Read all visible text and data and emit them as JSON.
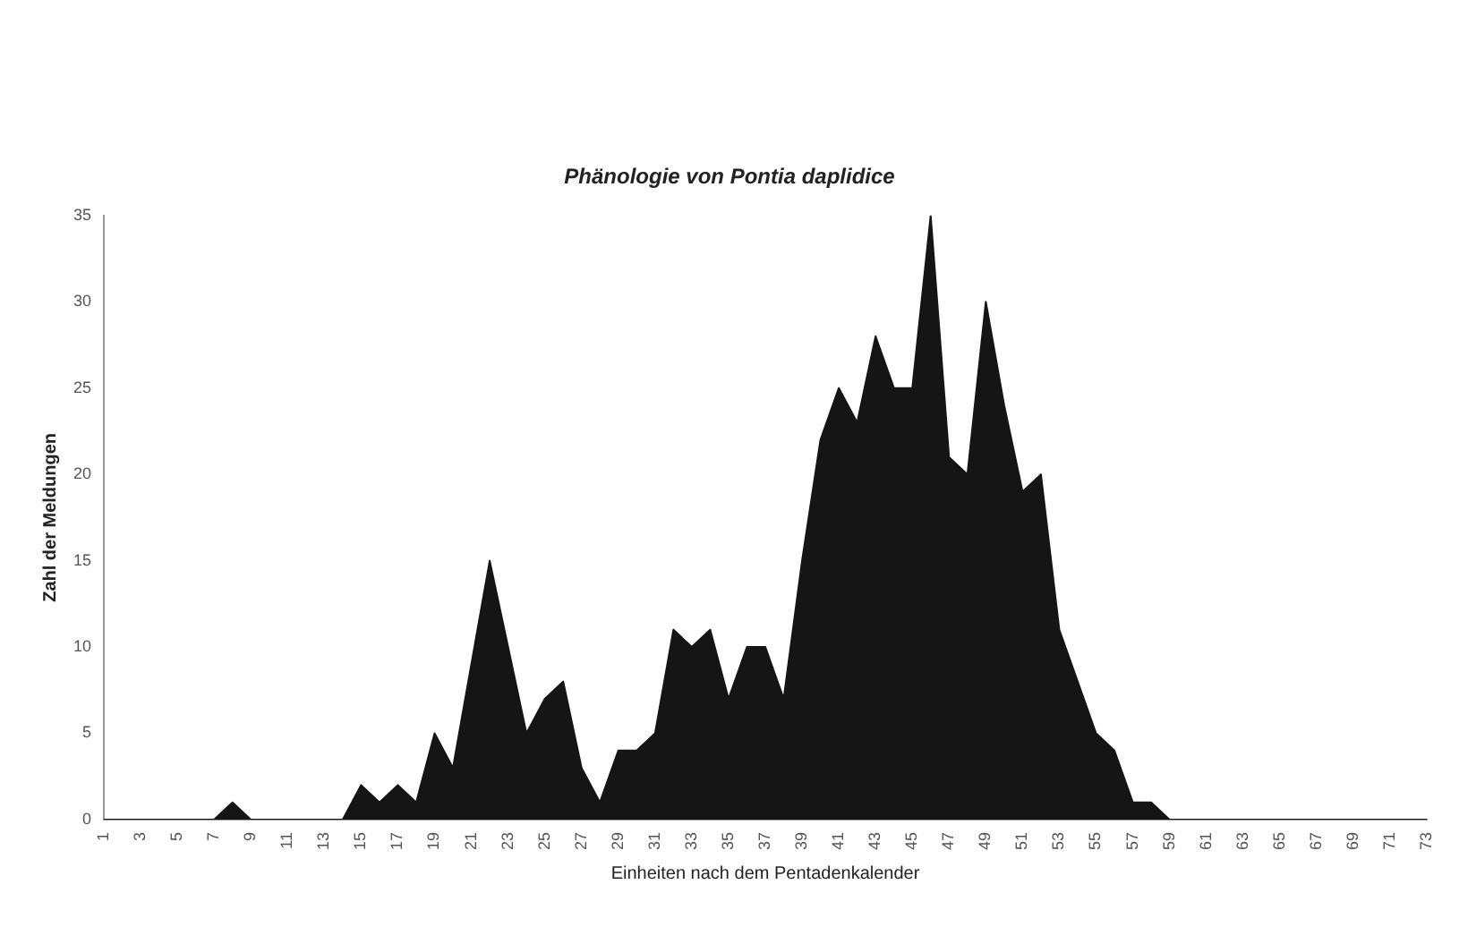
{
  "chart_data": {
    "type": "area",
    "title": "Phänologie von Pontia daplidice",
    "xlabel": "Einheiten nach dem Pentadenkalender",
    "ylabel": "Zahl der Meldungen",
    "categories": [
      "1",
      null,
      "3",
      null,
      "5",
      null,
      "7",
      null,
      "9",
      null,
      "11",
      null,
      "13",
      null,
      "15",
      null,
      "17",
      null,
      "19",
      null,
      "21",
      null,
      "23",
      null,
      "25",
      null,
      "27",
      null,
      "29",
      null,
      "31",
      null,
      "33",
      null,
      "35",
      null,
      "37",
      null,
      "39",
      null,
      "41",
      null,
      "43",
      null,
      "45",
      null,
      "47",
      null,
      "49",
      null,
      "51",
      null,
      "53",
      null,
      "55",
      null,
      "57",
      null,
      "59",
      null,
      "61",
      null,
      "63",
      null,
      "65",
      null,
      "67",
      null,
      "69",
      null,
      "71",
      null,
      "73"
    ],
    "values": [
      0,
      0,
      0,
      0,
      0,
      0,
      0,
      1,
      0,
      0,
      0,
      0,
      0,
      0,
      2,
      1,
      2,
      1,
      5,
      3,
      9,
      15,
      10,
      5,
      7,
      8,
      3,
      1,
      4,
      4,
      5,
      11,
      10,
      11,
      7,
      10,
      10,
      7,
      15,
      22,
      25,
      23,
      28,
      25,
      25,
      35,
      21,
      20,
      30,
      24,
      19,
      20,
      11,
      8,
      5,
      4,
      1,
      1,
      0,
      0,
      0,
      0,
      0,
      0,
      0,
      0,
      0,
      0,
      0,
      0,
      0,
      0,
      0
    ],
    "color": "#151515",
    "ylim": [
      0,
      35
    ],
    "yticks": [
      0,
      5,
      10,
      15,
      20,
      25,
      30,
      35
    ],
    "grid": false,
    "legend": false
  }
}
